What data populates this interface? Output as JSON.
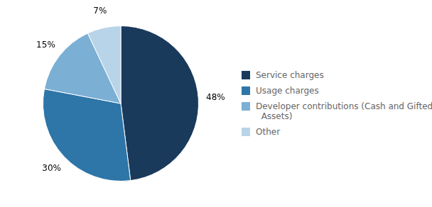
{
  "chart_data": {
    "type": "pie",
    "categories": [
      "Service charges",
      "Usage charges",
      "Developer contributions (Cash and Gifted\n  Assets)",
      "Other"
    ],
    "values": [
      48,
      30,
      15,
      7
    ],
    "value_labels": [
      "48%",
      "30%",
      "15%",
      "7%"
    ],
    "colors": [
      "#1a3a5c",
      "#2e75a8",
      "#7bafd4",
      "#b8d4e8"
    ],
    "legend": "right",
    "data_labels": true
  }
}
